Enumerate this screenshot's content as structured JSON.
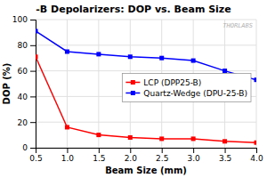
{
  "chart_data": {
    "type": "line",
    "title": "-B Depolarizers: DOP vs. Beam Size",
    "xlabel": "Beam Size (mm)",
    "ylabel": "DOP (%)",
    "x": [
      0.5,
      1.0,
      1.5,
      2.0,
      2.5,
      3.0,
      3.5,
      4.0
    ],
    "series": [
      {
        "name": "LCP (DPP25-B)",
        "color": "#ff0000",
        "marker": "square",
        "values": [
          71,
          16,
          10,
          8,
          7,
          7,
          5,
          4
        ]
      },
      {
        "name": "Quartz-Wedge (DPU-25-B)",
        "color": "#0000ff",
        "marker": "square",
        "values": [
          91,
          75,
          73,
          71,
          70,
          68,
          60,
          53
        ]
      }
    ],
    "xlim": [
      0.5,
      4.0
    ],
    "ylim": [
      0,
      100
    ],
    "xticks": [
      0.5,
      {
        "value": 1.0,
        "label": "1.0"
      },
      1.5,
      {
        "value": 2.0,
        "label": "2.0"
      },
      2.5,
      {
        "value": 3.0,
        "label": "3.0"
      },
      3.5,
      {
        "value": 4.0,
        "label": "4.0"
      }
    ],
    "yticks": [
      0,
      20,
      40,
      60,
      80,
      100
    ],
    "grid": true,
    "legend": "right",
    "annotations": [
      "THORLABS"
    ]
  }
}
